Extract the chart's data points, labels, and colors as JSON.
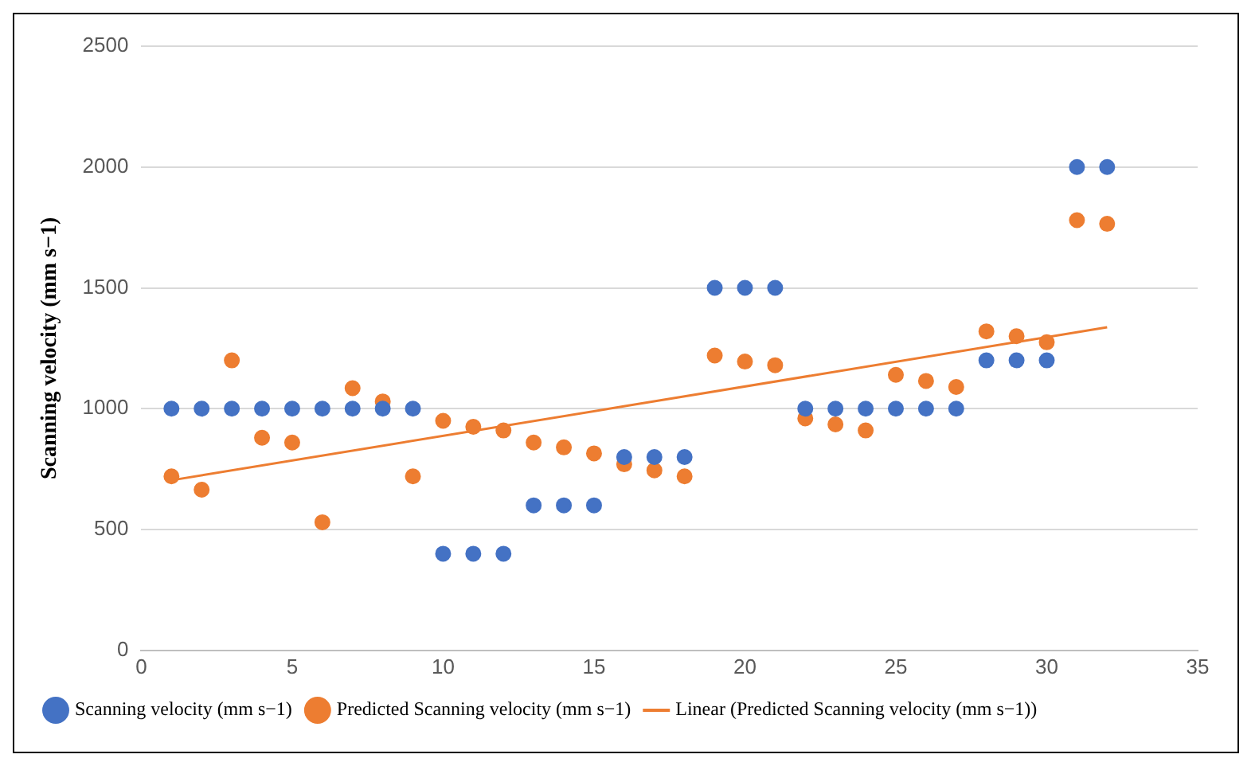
{
  "chart_data": {
    "type": "scatter",
    "ylabel": "Scanning velocity (mm s−1)",
    "xlim": [
      0,
      35
    ],
    "xticks": [
      0,
      5,
      10,
      15,
      20,
      25,
      30,
      35
    ],
    "ylim": [
      0,
      2500
    ],
    "yticks": [
      0,
      500,
      1000,
      1500,
      2000,
      2500
    ],
    "grid": "y",
    "legend": "bottom",
    "marker": "circle",
    "series": [
      {
        "name": "Scanning velocity (mm s−1)",
        "color": "#4472c4",
        "x": [
          1,
          2,
          3,
          4,
          5,
          6,
          7,
          8,
          9,
          10,
          11,
          12,
          13,
          14,
          15,
          16,
          17,
          18,
          19,
          20,
          21,
          22,
          23,
          24,
          25,
          26,
          27,
          28,
          29,
          30,
          31,
          32
        ],
        "values": [
          1000,
          1000,
          1000,
          1000,
          1000,
          1000,
          1000,
          1000,
          1000,
          400,
          400,
          400,
          600,
          600,
          600,
          800,
          800,
          800,
          1500,
          1500,
          1500,
          1000,
          1000,
          1000,
          1000,
          1000,
          1000,
          1200,
          1200,
          1200,
          2000,
          2000
        ]
      },
      {
        "name": "Predicted Scanning velocity (mm s−1)",
        "color": "#ed7d31",
        "x": [
          1,
          2,
          3,
          4,
          5,
          6,
          7,
          8,
          9,
          10,
          11,
          12,
          13,
          14,
          15,
          16,
          17,
          18,
          19,
          20,
          21,
          22,
          23,
          24,
          25,
          26,
          27,
          28,
          29,
          30,
          31,
          32
        ],
        "values": [
          720,
          665,
          1200,
          880,
          860,
          530,
          1085,
          1030,
          720,
          950,
          925,
          910,
          860,
          840,
          815,
          770,
          745,
          720,
          1220,
          1195,
          1180,
          960,
          935,
          910,
          1140,
          1115,
          1090,
          1320,
          1300,
          1275,
          1780,
          1765
        ]
      },
      {
        "name": "Linear (Predicted Scanning velocity (mm s−1))",
        "type": "line",
        "color": "#ed7d31",
        "marker": "none",
        "line_style": "solid",
        "x": [
          1,
          32
        ],
        "values": [
          704,
          1337
        ]
      }
    ]
  }
}
